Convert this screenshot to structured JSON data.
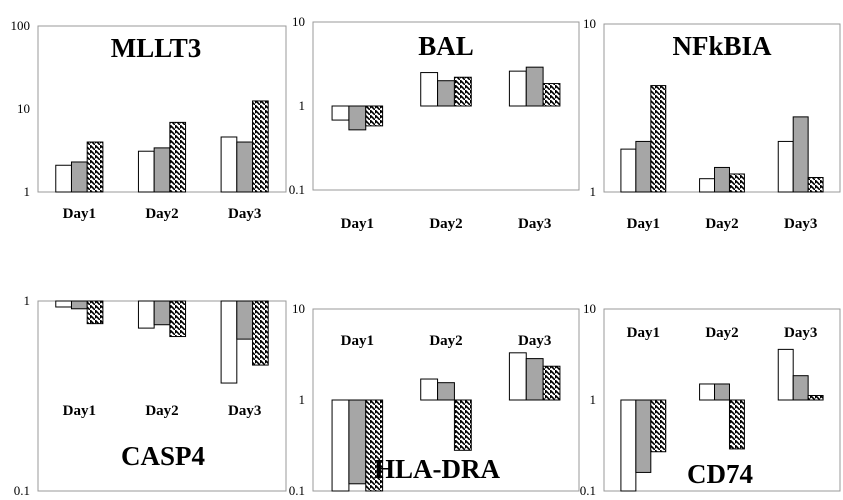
{
  "legend": [],
  "series_styles": [
    {
      "fill": "#ffffff"
    },
    {
      "fill": "#a6a6a6"
    },
    {
      "fill": "hatch"
    }
  ],
  "chart_data": [
    {
      "type": "bar",
      "title": "MLLT3",
      "scale": "log",
      "ylim": [
        1,
        100
      ],
      "ticks": [
        "1",
        "10",
        "100"
      ],
      "categories": [
        "Day1",
        "Day2",
        "Day3"
      ],
      "series": [
        {
          "values": [
            2.1,
            3.1,
            4.6
          ]
        },
        {
          "values": [
            2.3,
            3.4,
            4.0
          ]
        },
        {
          "values": [
            4.0,
            6.9,
            12.5
          ]
        }
      ]
    },
    {
      "type": "bar",
      "title": "BAL",
      "scale": "log",
      "ylim": [
        0.1,
        10
      ],
      "ticks": [
        "0.1",
        "1",
        "10"
      ],
      "categories": [
        "Day1",
        "Day2",
        "Day3"
      ],
      "series": [
        {
          "values": [
            0.68,
            2.5,
            2.6
          ]
        },
        {
          "values": [
            0.52,
            2.0,
            2.9
          ]
        },
        {
          "values": [
            0.58,
            2.2,
            1.85
          ]
        }
      ]
    },
    {
      "type": "bar",
      "title": "NFkBIA",
      "scale": "log",
      "ylim": [
        1,
        10
      ],
      "ticks": [
        "1",
        "10"
      ],
      "categories": [
        "Day1",
        "Day2",
        "Day3"
      ],
      "series": [
        {
          "values": [
            1.8,
            1.2,
            2.0
          ]
        },
        {
          "values": [
            2.0,
            1.4,
            2.8
          ]
        },
        {
          "values": [
            4.3,
            1.28,
            1.22
          ]
        }
      ]
    },
    {
      "type": "bar",
      "title": "CASP4",
      "scale": "log",
      "ylim": [
        0.1,
        1
      ],
      "ticks": [
        "0.1",
        "1"
      ],
      "categories": [
        "Day1",
        "Day2",
        "Day3"
      ],
      "series": [
        {
          "values": [
            0.93,
            0.72,
            0.37
          ]
        },
        {
          "values": [
            0.91,
            0.75,
            0.63
          ]
        },
        {
          "values": [
            0.76,
            0.65,
            0.46
          ]
        }
      ]
    },
    {
      "type": "bar",
      "title": "HLA-DRA",
      "scale": "log",
      "ylim": [
        0.1,
        10
      ],
      "ticks": [
        "0.1",
        "1",
        "10"
      ],
      "categories": [
        "Day1",
        "Day2",
        "Day3"
      ],
      "series": [
        {
          "values": [
            0.1,
            1.7,
            3.3
          ]
        },
        {
          "values": [
            0.12,
            1.55,
            2.85
          ]
        },
        {
          "values": [
            0.1,
            0.28,
            2.35
          ]
        }
      ]
    },
    {
      "type": "bar",
      "title": "CD74",
      "scale": "log",
      "ylim": [
        0.1,
        10
      ],
      "ticks": [
        "0.1",
        "1",
        "10"
      ],
      "categories": [
        "Day1",
        "Day2",
        "Day3"
      ],
      "series": [
        {
          "values": [
            0.1,
            1.5,
            3.6
          ]
        },
        {
          "values": [
            0.16,
            1.5,
            1.85
          ]
        },
        {
          "values": [
            0.27,
            0.29,
            1.12
          ]
        }
      ]
    }
  ]
}
